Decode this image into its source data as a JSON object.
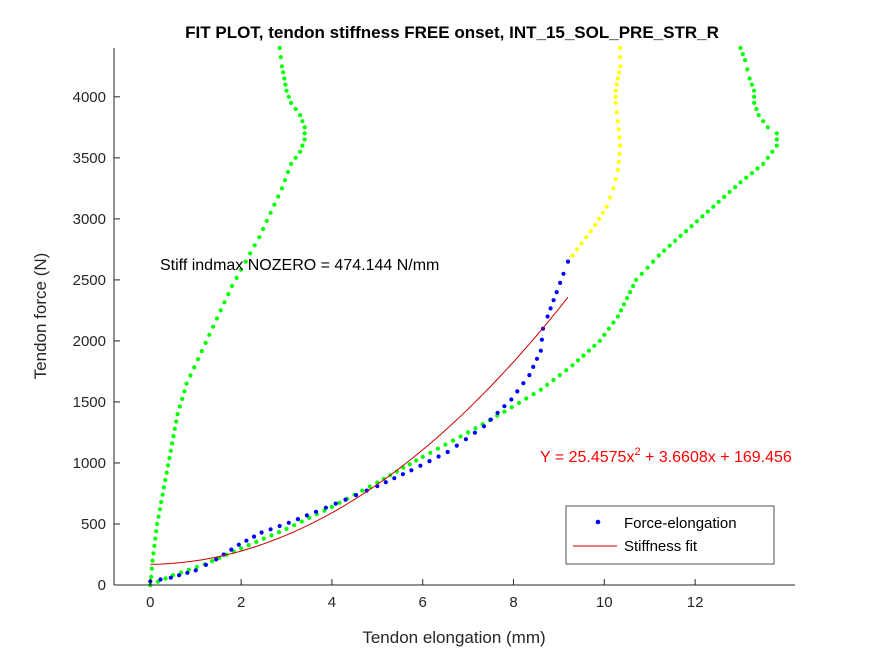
{
  "chart_data": {
    "type": "scatter",
    "title": "FIT PLOT, tendon stiffness FREE onset, INT_15_SOL_PRE_STR_R",
    "xlabel": "Tendon elongation (mm)",
    "ylabel": "Tendon force (N)",
    "xlim": [
      -0.8,
      14.2
    ],
    "ylim": [
      0,
      4400
    ],
    "xticks": [
      "0",
      "2",
      "4",
      "6",
      "8",
      "10",
      "12"
    ],
    "xtick_values": [
      0,
      2,
      4,
      6,
      8,
      10,
      12
    ],
    "yticks": [
      "0",
      "500",
      "1000",
      "1500",
      "2000",
      "2500",
      "3000",
      "3500",
      "4000"
    ],
    "ytick_values": [
      0,
      500,
      1000,
      1500,
      2000,
      2500,
      3000,
      3500,
      4000
    ],
    "grid": false,
    "legend_position": "bottom-right",
    "legend": [
      "Force-elongation",
      "Stiffness fit"
    ],
    "annotations": {
      "stiffness": "Stiff indmax NOZERO = 474.144 N/mm",
      "equation": "Y = 25.4575x",
      "equation_exp": "2",
      "equation_rest": " + 3.6608x + 169.456"
    },
    "colors": {
      "blue": "#0000ff",
      "green": "#00ff00",
      "yellow": "#ffff00",
      "fit": "#cc0000",
      "equation": "#ff0000",
      "axis": "#262626"
    },
    "series": [
      {
        "name": "Force-elongation",
        "color": "#0000ff",
        "x": [
          0,
          0.45,
          1.0,
          1.45,
          1.95,
          2.45,
          3.05,
          3.65,
          4.3,
          5.0,
          5.75,
          6.55,
          7.35,
          7.95,
          8.35,
          8.6,
          8.65,
          8.75,
          8.95,
          9.1,
          9.2
        ],
        "y": [
          30,
          60,
          120,
          210,
          330,
          430,
          510,
          600,
          700,
          810,
          940,
          1090,
          1300,
          1520,
          1720,
          1920,
          2100,
          2200,
          2400,
          2550,
          2650
        ]
      },
      {
        "name": "Stiffness fit",
        "type": "line",
        "color": "#cc0000",
        "fit": {
          "a": 25.4575,
          "b": 3.6608,
          "c": 169.456
        },
        "x_range": [
          0,
          9.2
        ]
      },
      {
        "color": "#00ff00",
        "x": [
          0,
          0.05,
          0.15,
          0.3,
          0.45,
          0.6,
          0.8,
          1.05,
          1.3,
          1.55,
          1.8,
          2.1,
          2.4,
          2.65,
          2.9,
          3.1,
          3.3,
          3.4,
          3.4,
          3.3,
          3.1,
          3.0,
          2.95,
          2.9,
          2.85
        ],
        "y": [
          0,
          200,
          500,
          800,
          1100,
          1400,
          1650,
          1850,
          2050,
          2250,
          2450,
          2650,
          2850,
          3050,
          3250,
          3450,
          3550,
          3650,
          3750,
          3850,
          3950,
          4050,
          4150,
          4250,
          4400
        ]
      },
      {
        "color": "#00ff00",
        "x": [
          0,
          0.5,
          1.2,
          2.0,
          3.0,
          4.0,
          5.0,
          6.0,
          7.0,
          7.8,
          8.6,
          9.3,
          9.9,
          10.3,
          10.5,
          10.7,
          11.2,
          11.8,
          12.4,
          13.0,
          13.5,
          13.8,
          13.8,
          13.6,
          13.4,
          13.3,
          13.3,
          13.2,
          13.1,
          13.0
        ],
        "y": [
          0,
          80,
          170,
          300,
          460,
          640,
          840,
          1050,
          1250,
          1420,
          1600,
          1800,
          2000,
          2200,
          2350,
          2500,
          2700,
          2900,
          3100,
          3300,
          3450,
          3600,
          3700,
          3750,
          3850,
          3950,
          4050,
          4150,
          4300,
          4400
        ]
      },
      {
        "color": "#ffff00",
        "x": [
          9.2,
          9.5,
          9.8,
          10.05,
          10.2,
          10.3,
          10.35,
          10.3,
          10.25,
          10.25,
          10.3,
          10.35,
          10.35
        ],
        "y": [
          2650,
          2800,
          2950,
          3100,
          3250,
          3400,
          3600,
          3800,
          3950,
          4050,
          4150,
          4250,
          4400
        ]
      }
    ]
  }
}
